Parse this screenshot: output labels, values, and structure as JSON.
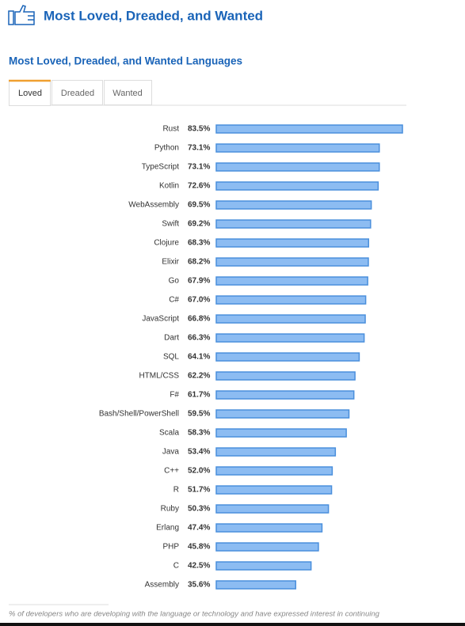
{
  "header": {
    "title": "Most Loved, Dreaded, and Wanted"
  },
  "tabs": [
    "Loved",
    "Dreaded",
    "Wanted"
  ],
  "chart_data": {
    "type": "bar",
    "orientation": "horizontal",
    "title": "Most Loved, Dreaded, and Wanted Languages",
    "categories": [
      "Rust",
      "Python",
      "TypeScript",
      "Kotlin",
      "WebAssembly",
      "Swift",
      "Clojure",
      "Elixir",
      "Go",
      "C#",
      "JavaScript",
      "Dart",
      "SQL",
      "HTML/CSS",
      "F#",
      "Bash/Shell/PowerShell",
      "Scala",
      "Java",
      "C++",
      "R",
      "Ruby",
      "Erlang",
      "PHP",
      "C",
      "Assembly"
    ],
    "values": [
      83.5,
      73.1,
      73.1,
      72.6,
      69.5,
      69.2,
      68.3,
      68.2,
      67.9,
      67.0,
      66.8,
      66.3,
      64.1,
      62.2,
      61.7,
      59.5,
      58.3,
      53.4,
      52.0,
      51.7,
      50.3,
      47.4,
      45.8,
      42.5,
      35.6
    ],
    "value_labels": [
      "83.5%",
      "73.1%",
      "73.1%",
      "72.6%",
      "69.5%",
      "69.2%",
      "68.3%",
      "68.2%",
      "67.9%",
      "67.0%",
      "66.8%",
      "66.3%",
      "64.1%",
      "62.2%",
      "61.7%",
      "59.5%",
      "58.3%",
      "53.4%",
      "52.0%",
      "51.7%",
      "50.3%",
      "47.4%",
      "45.8%",
      "42.5%",
      "35.6%"
    ],
    "color": "#8cbcf2"
  },
  "footnote": "% of developers who are developing with the language or technology and have expressed interest in continuing"
}
